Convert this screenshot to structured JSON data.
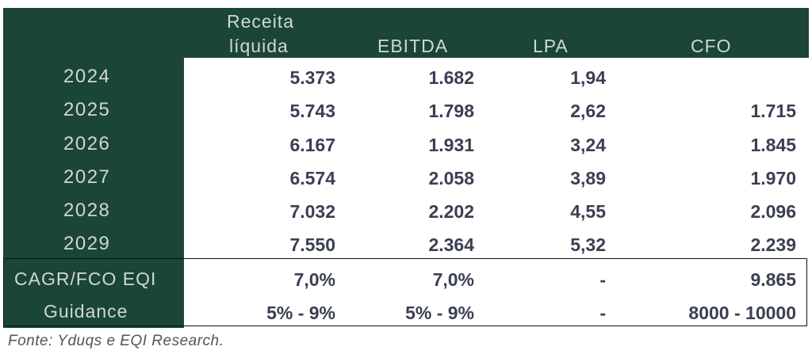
{
  "headers": {
    "col1_line1": "Receita",
    "col1_line2": "líquida",
    "col2": "EBITDA",
    "col3": "LPA",
    "col4": "CFO"
  },
  "rows": [
    {
      "year": "2024",
      "receita": "5.373",
      "ebitda": "1.682",
      "lpa": "1,94",
      "cfo": ""
    },
    {
      "year": "2025",
      "receita": "5.743",
      "ebitda": "1.798",
      "lpa": "2,62",
      "cfo": "1.715"
    },
    {
      "year": "2026",
      "receita": "6.167",
      "ebitda": "1.931",
      "lpa": "3,24",
      "cfo": "1.845"
    },
    {
      "year": "2027",
      "receita": "6.574",
      "ebitda": "2.058",
      "lpa": "3,89",
      "cfo": "1.970"
    },
    {
      "year": "2028",
      "receita": "7.032",
      "ebitda": "2.202",
      "lpa": "4,55",
      "cfo": "2.096"
    },
    {
      "year": "2029",
      "receita": "7.550",
      "ebitda": "2.364",
      "lpa": "5,32",
      "cfo": "2.239"
    }
  ],
  "summary": [
    {
      "label": "CAGR/FCO EQI",
      "receita": "7,0%",
      "ebitda": "7,0%",
      "lpa": "-",
      "cfo": "9.865"
    },
    {
      "label": "Guidance",
      "receita": "5% - 9%",
      "ebitda": "5% - 9%",
      "lpa": "-",
      "cfo": "8000 - 10000"
    }
  ],
  "source": "Fonte: Yduqs e EQI Research.",
  "colors": {
    "header_bg": "#1b4536",
    "header_text": "#cfd8d3",
    "value_text": "#3a3f52"
  }
}
